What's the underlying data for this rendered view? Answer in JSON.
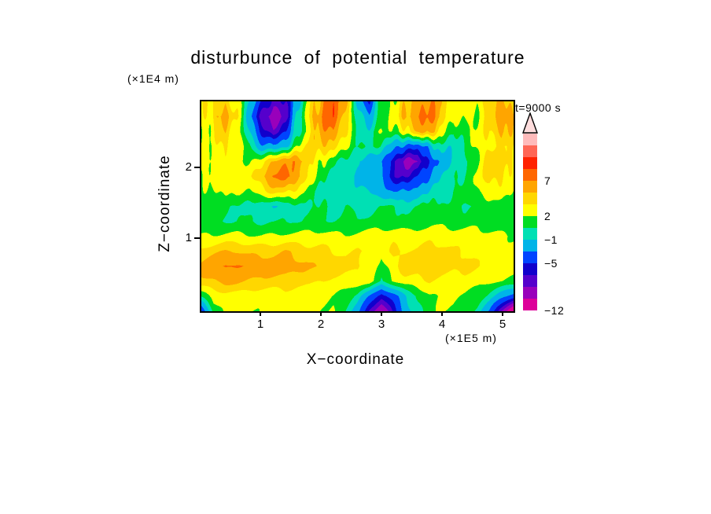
{
  "chart_data": {
    "type": "heatmap",
    "title": "disturbunce of potential temperature",
    "time_label": "t=9000 s",
    "xlabel": "X−coordinate",
    "zlabel": "Z−coordinate",
    "x_unit": "(×1E5 m)",
    "z_unit": "(×1E4 m)",
    "x_ticks": [
      "1",
      "2",
      "3",
      "4",
      "5"
    ],
    "z_ticks": [
      "1",
      "2"
    ],
    "x_range": [
      0,
      5.15
    ],
    "z_range": [
      0,
      2.95
    ],
    "legend_position": "right",
    "grid_lines": false,
    "levels": [
      -12,
      -10,
      -8,
      -6.5,
      -5,
      -3,
      -1,
      0.5,
      2,
      3.5,
      5,
      7,
      9,
      11,
      13
    ],
    "colors": [
      "#DD0099",
      "#9900BB",
      "#5500CC",
      "#1100CC",
      "#0044FF",
      "#00B4E8",
      "#00E0B4",
      "#00DD22",
      "#FFFF00",
      "#FFD700",
      "#FFA500",
      "#FF6600",
      "#FF2200",
      "#FF6655",
      "#FFBBBB"
    ],
    "colorbar_labels": [
      {
        "text": "7",
        "boundary": 11
      },
      {
        "text": "2",
        "boundary": 8
      },
      {
        "text": "−1",
        "boundary": 6
      },
      {
        "text": "−5",
        "boundary": 4
      },
      {
        "text": "−12",
        "boundary": 0
      }
    ],
    "grid": [
      [
        3,
        3.5,
        5,
        2,
        -1,
        -4,
        -8,
        -6,
        -2,
        3,
        6,
        9,
        5,
        -1,
        -5,
        1,
        2.5,
        4,
        6,
        7,
        5,
        2.5,
        3,
        2.5,
        4,
        6,
        3
      ],
      [
        2.5,
        4,
        6,
        3,
        -2,
        -7,
        -10,
        -7,
        -1,
        4,
        7,
        9,
        4,
        0,
        -2,
        1,
        2.5,
        5,
        7,
        8,
        5,
        2,
        2.5,
        2.5,
        3,
        7,
        5
      ],
      [
        2,
        3,
        5,
        2,
        -1,
        -5,
        -8,
        -5,
        0,
        3,
        6,
        7,
        3,
        0.5,
        0,
        1.5,
        2,
        3,
        5,
        6,
        3,
        0,
        2,
        2.5,
        3,
        6,
        4
      ],
      [
        2,
        2.5,
        4,
        2.5,
        1,
        -2,
        -3,
        -1,
        2,
        4,
        5,
        4,
        2,
        1,
        0.5,
        0,
        -2,
        -4,
        -4,
        -2,
        0,
        -1,
        1,
        2.5,
        3,
        4,
        3
      ],
      [
        2.5,
        3,
        3,
        2,
        2,
        3,
        5,
        7,
        6,
        4,
        2,
        1,
        0,
        -1,
        -2,
        -3,
        -6,
        -9,
        -8,
        -5,
        -2,
        -1,
        0.5,
        2,
        4,
        5,
        3
      ],
      [
        2,
        2.5,
        3,
        2.5,
        3,
        5,
        7,
        8,
        6,
        3,
        1,
        0,
        -0.5,
        -1,
        -1.5,
        -3,
        -6,
        -7,
        -5,
        -3,
        -1,
        0,
        1,
        2.5,
        4,
        4,
        2.5
      ],
      [
        1.5,
        2,
        2.5,
        2,
        2,
        3,
        4,
        4,
        3,
        1,
        0,
        -0.5,
        0,
        -0.5,
        -1,
        -2,
        -3,
        -3,
        -2,
        -1,
        0,
        0.5,
        1,
        2,
        3,
        3,
        2
      ],
      [
        1,
        1,
        0.5,
        0.5,
        0,
        -0.5,
        -1,
        -0.5,
        0,
        0.5,
        0.5,
        0,
        0.5,
        0,
        0,
        0.5,
        0.5,
        0,
        0.5,
        1,
        1,
        0.5,
        0.5,
        1,
        1,
        1,
        1
      ],
      [
        0.8,
        0.8,
        0.5,
        0.5,
        0.5,
        0.3,
        0.3,
        0.5,
        0.5,
        0.8,
        0.8,
        0.5,
        0.8,
        0.8,
        1,
        1.2,
        1.2,
        1,
        1.2,
        1.5,
        1.5,
        1.2,
        1.2,
        1.5,
        1.2,
        1,
        1
      ],
      [
        2,
        2.2,
        2.4,
        2.4,
        2.2,
        2,
        2.2,
        2.4,
        2.4,
        2.6,
        2.6,
        2.4,
        2.2,
        2.4,
        2.6,
        2.8,
        2.8,
        2.6,
        2.8,
        3,
        3,
        2.8,
        2.8,
        2.6,
        2.4,
        2.2,
        2
      ],
      [
        4,
        4.5,
        5,
        5,
        4.5,
        4.5,
        4.5,
        5,
        4.5,
        4,
        4,
        3.5,
        3,
        3.5,
        3.5,
        2,
        4,
        3.5,
        3.5,
        4,
        4,
        3.5,
        3.5,
        3,
        3,
        2.5,
        2.5
      ],
      [
        5.5,
        6.5,
        7.4,
        7,
        6.5,
        6,
        6,
        6,
        5.5,
        5,
        5,
        4.5,
        4,
        4,
        2.5,
        1.5,
        3,
        4.5,
        4.5,
        5,
        4.5,
        4,
        4,
        3.5,
        3,
        2.5,
        2.5
      ],
      [
        4.5,
        5,
        5.5,
        5.5,
        5,
        4.5,
        4.5,
        4.5,
        4,
        4,
        3.5,
        3,
        2.8,
        2.8,
        3,
        0.5,
        2,
        3,
        3,
        3.5,
        3,
        2.8,
        2.8,
        2.5,
        2.2,
        2,
        2
      ],
      [
        1,
        2.5,
        2.8,
        2.8,
        2.5,
        2.5,
        2.5,
        2.8,
        2.5,
        2.5,
        2.5,
        2.2,
        1.5,
        0,
        -3,
        -6,
        -4,
        -1,
        0.5,
        2,
        2.2,
        2.2,
        2,
        1.5,
        0,
        -2,
        -4
      ],
      [
        -5,
        1,
        2.5,
        2.5,
        2.2,
        2.2,
        2.5,
        2.8,
        2.5,
        2.5,
        2.2,
        2,
        0.5,
        -2,
        -7,
        -10,
        -6,
        -2,
        0,
        1.5,
        2,
        2,
        1.5,
        0,
        -3,
        -8,
        -13
      ]
    ]
  }
}
